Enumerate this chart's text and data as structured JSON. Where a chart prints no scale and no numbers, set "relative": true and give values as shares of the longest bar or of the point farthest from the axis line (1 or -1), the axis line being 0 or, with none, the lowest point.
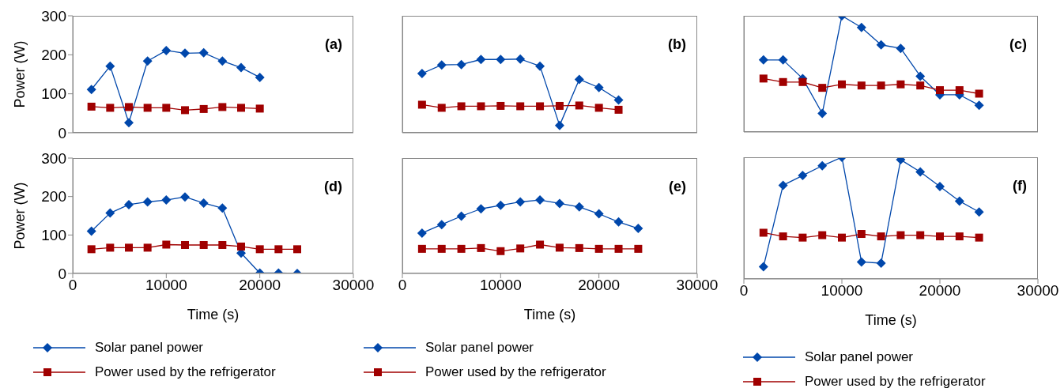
{
  "chart_data": [
    {
      "type": "line",
      "ylabel": "Power (W)",
      "annotations": [
        "(a)"
      ],
      "x": [
        2000,
        4000,
        6000,
        8000,
        10000,
        12000,
        14000,
        16000,
        18000,
        20000
      ],
      "xlim": [
        0,
        30000
      ],
      "xticks": [
        0,
        10000,
        20000,
        30000
      ],
      "ylim": [
        0,
        300
      ],
      "yticks": [
        0,
        100,
        200,
        300
      ],
      "tick_labels": "y",
      "series": [
        {
          "color": "#0047ab",
          "marker": "diamond",
          "values": [
            111,
            171,
            26,
            184,
            211,
            204,
            205,
            184,
            167,
            142
          ]
        },
        {
          "color": "#a00000",
          "marker": "square",
          "values": [
            67,
            64,
            66,
            64,
            64,
            58,
            61,
            66,
            64,
            62
          ]
        }
      ]
    },
    {
      "type": "line",
      "annotations": [
        "(b)"
      ],
      "x": [
        2000,
        4000,
        6000,
        8000,
        10000,
        12000,
        14000,
        16000,
        18000,
        20000,
        22000
      ],
      "xlim": [
        0,
        30000
      ],
      "xticks": [
        0,
        10000,
        20000,
        30000
      ],
      "ylim": [
        0,
        300
      ],
      "yticks": [
        0,
        100,
        200,
        300
      ],
      "tick_labels": false,
      "series": [
        {
          "color": "#0047ab",
          "marker": "diamond",
          "values": [
            152,
            174,
            175,
            188,
            188,
            189,
            171,
            19,
            137,
            116,
            84
          ]
        },
        {
          "color": "#a00000",
          "marker": "square",
          "values": [
            72,
            64,
            68,
            68,
            69,
            68,
            68,
            69,
            70,
            64,
            59
          ]
        }
      ]
    },
    {
      "type": "line",
      "annotations": [
        "(c)"
      ],
      "relative": true,
      "x": [
        2000,
        4000,
        6000,
        8000,
        10000,
        12000,
        14000,
        16000,
        18000,
        20000,
        22000,
        24000
      ],
      "xlim": [
        0,
        30000
      ],
      "xticks": [
        0,
        10000,
        20000,
        30000
      ],
      "tick_labels": false,
      "series": [
        {
          "color": "#0047ab",
          "marker": "diamond",
          "values": [
            0.62,
            0.62,
            0.46,
            0.16,
            1,
            0.9,
            0.75,
            0.72,
            0.48,
            0.32,
            0.32,
            0.23
          ]
        },
        {
          "color": "#a00000",
          "marker": "square",
          "values": [
            0.46,
            0.43,
            0.43,
            0.38,
            0.41,
            0.4,
            0.4,
            0.41,
            0.4,
            0.36,
            0.36,
            0.33
          ]
        }
      ]
    },
    {
      "type": "line",
      "xlabel": "Time (s)",
      "ylabel": "Power (W)",
      "annotations": [
        "(d)"
      ],
      "legend": "bottom",
      "x": [
        2000,
        4000,
        6000,
        8000,
        10000,
        12000,
        14000,
        16000,
        18000,
        20000,
        22000,
        24000
      ],
      "xlim": [
        0,
        30000
      ],
      "xticks": [
        0,
        10000,
        20000,
        30000
      ],
      "ylim": [
        0,
        300
      ],
      "yticks": [
        0,
        100,
        200,
        300
      ],
      "series": [
        {
          "name": "Solar panel power",
          "color": "#0047ab",
          "marker": "diamond",
          "values": [
            110,
            157,
            179,
            186,
            191,
            199,
            183,
            170,
            53,
            1,
            1,
            0
          ]
        },
        {
          "name": "Power used by the refrigerator",
          "color": "#a00000",
          "marker": "square",
          "values": [
            63,
            67,
            67,
            67,
            75,
            74,
            74,
            74,
            70,
            63,
            63,
            63
          ]
        }
      ]
    },
    {
      "type": "line",
      "xlabel": "Time (s)",
      "annotations": [
        "(e)"
      ],
      "legend": "bottom",
      "x": [
        2000,
        4000,
        6000,
        8000,
        10000,
        12000,
        14000,
        16000,
        18000,
        20000,
        22000,
        24000
      ],
      "xlim": [
        0,
        30000
      ],
      "xticks": [
        0,
        10000,
        20000,
        30000
      ],
      "ylim": [
        0,
        300
      ],
      "yticks": [
        0,
        100,
        200,
        300
      ],
      "tick_labels": "x",
      "series": [
        {
          "name": "Solar panel power",
          "color": "#0047ab",
          "marker": "diamond",
          "values": [
            105,
            127,
            149,
            168,
            177,
            186,
            191,
            182,
            173,
            155,
            134,
            117
          ]
        },
        {
          "name": "Power used by the refrigerator",
          "color": "#a00000",
          "marker": "square",
          "values": [
            64,
            64,
            64,
            66,
            58,
            65,
            75,
            67,
            66,
            64,
            64,
            64
          ]
        }
      ]
    },
    {
      "type": "line",
      "xlabel": "Time (s)",
      "annotations": [
        "(f)"
      ],
      "relative": true,
      "legend": "bottom",
      "x": [
        2000,
        4000,
        6000,
        8000,
        10000,
        12000,
        14000,
        16000,
        18000,
        20000,
        22000,
        24000
      ],
      "xlim": [
        0,
        30000
      ],
      "xticks": [
        0,
        10000,
        20000,
        30000
      ],
      "tick_labels": "x",
      "series": [
        {
          "name": "Solar panel power",
          "color": "#0047ab",
          "marker": "diamond",
          "values": [
            0.1,
            0.77,
            0.85,
            0.93,
            1,
            0.14,
            0.13,
            0.98,
            0.88,
            0.76,
            0.64,
            0.55
          ]
        },
        {
          "name": "Power used by the refrigerator",
          "color": "#a00000",
          "marker": "square",
          "values": [
            0.38,
            0.35,
            0.34,
            0.36,
            0.34,
            0.37,
            0.35,
            0.36,
            0.36,
            0.35,
            0.35,
            0.34
          ]
        }
      ]
    }
  ]
}
